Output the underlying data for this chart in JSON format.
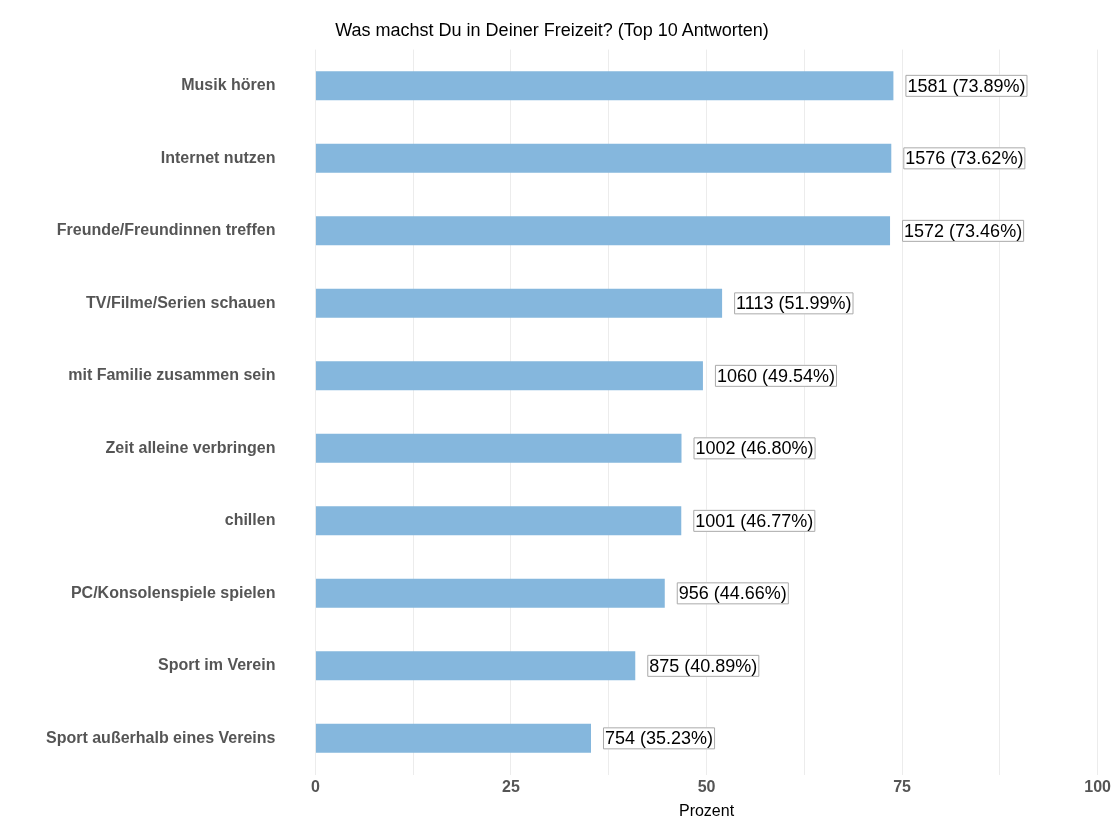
{
  "chart_data": {
    "type": "bar",
    "orientation": "horizontal",
    "title": "Was machst Du in Deiner Freizeit? (Top 10 Antworten)",
    "xlabel": "Prozent",
    "categories": [
      "Musik hören",
      "Internet nutzen",
      "Freunde/Freundinnen treffen",
      "TV/Filme/Serien schauen",
      "mit Familie zusammen sein",
      "Zeit alleine verbringen",
      "chillen",
      "PC/Konsolenspiele spielen",
      "Sport im Verein",
      "Sport außerhalb eines Vereins"
    ],
    "values": [
      73.89,
      73.62,
      73.46,
      51.99,
      49.54,
      46.8,
      46.77,
      44.66,
      40.89,
      35.23
    ],
    "value_labels": [
      "1581 (73.89%)",
      "1576 (73.62%)",
      "1572 (73.46%)",
      "1113 (51.99%)",
      "1060 (49.54%)",
      "1002 (46.80%)",
      "1001 (46.77%)",
      "956 (44.66%)",
      "875 (40.89%)",
      "754 (35.23%)"
    ],
    "color": "#85b7dd",
    "xlim": [
      0,
      100
    ],
    "xticks": [
      0,
      {
        "value": 12.5,
        "label": null
      },
      25,
      {
        "value": 37.5,
        "label": null
      },
      50,
      {
        "value": 62.5,
        "label": null
      },
      75,
      {
        "value": 87.5,
        "label": null
      },
      100
    ],
    "grid": "x"
  }
}
